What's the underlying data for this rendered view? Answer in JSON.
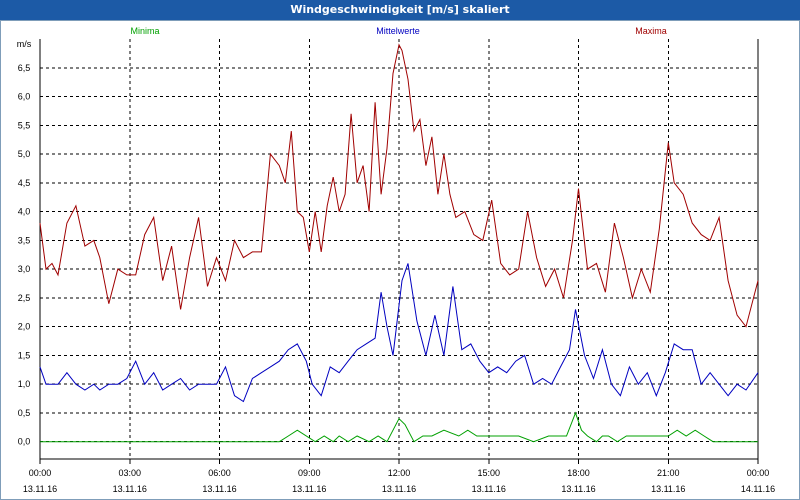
{
  "window": {
    "title": "Windgeschwindigkeit [m/s] skaliert"
  },
  "colors": {
    "titlebar": "#1c5aa6",
    "minima": "#00a000",
    "mittel": "#0000c0",
    "maxima": "#a00000",
    "grid": "#000000"
  },
  "chart_data": {
    "type": "line",
    "title": "Windgeschwindigkeit [m/s] skaliert",
    "ylabel": "m/s",
    "xlabel": "",
    "ylim": [
      -0.3,
      7.0
    ],
    "xlim": [
      0,
      24
    ],
    "grid": true,
    "legend_placement": "top",
    "yticks": [
      {
        "v": 0.0,
        "label": "0,0"
      },
      {
        "v": 0.5,
        "label": "0,5"
      },
      {
        "v": 1.0,
        "label": "1,0"
      },
      {
        "v": 1.5,
        "label": "1,5"
      },
      {
        "v": 2.0,
        "label": "2,0"
      },
      {
        "v": 2.5,
        "label": "2,5"
      },
      {
        "v": 3.0,
        "label": "3,0"
      },
      {
        "v": 3.5,
        "label": "3,5"
      },
      {
        "v": 4.0,
        "label": "4,0"
      },
      {
        "v": 4.5,
        "label": "4,5"
      },
      {
        "v": 5.0,
        "label": "5,0"
      },
      {
        "v": 5.5,
        "label": "5,5"
      },
      {
        "v": 6.0,
        "label": "6,0"
      },
      {
        "v": 6.5,
        "label": "6,5"
      }
    ],
    "xticks": [
      {
        "h": 0,
        "time": "00:00",
        "date": "13.11.16"
      },
      {
        "h": 3,
        "time": "03:00",
        "date": "13.11.16"
      },
      {
        "h": 6,
        "time": "06:00",
        "date": "13.11.16"
      },
      {
        "h": 9,
        "time": "09:00",
        "date": "13.11.16"
      },
      {
        "h": 12,
        "time": "12:00",
        "date": "13.11.16"
      },
      {
        "h": 15,
        "time": "15:00",
        "date": "13.11.16"
      },
      {
        "h": 18,
        "time": "18:00",
        "date": "13.11.16"
      },
      {
        "h": 21,
        "time": "21:00",
        "date": "13.11.16"
      },
      {
        "h": 24,
        "time": "00:00",
        "date": "14.11.16"
      }
    ],
    "series": [
      {
        "name": "Minima",
        "color": "#00a000",
        "x": [
          0,
          8,
          8.3,
          8.6,
          9.2,
          9.5,
          9.8,
          10.0,
          10.3,
          10.6,
          11.0,
          11.3,
          11.6,
          12.0,
          12.2,
          12.5,
          12.8,
          13.1,
          13.5,
          14.0,
          14.3,
          14.6,
          15.0,
          16.0,
          16.5,
          17.0,
          17.3,
          17.6,
          17.9,
          18.1,
          18.3,
          18.6,
          18.8,
          19.0,
          19.3,
          19.6,
          20.0,
          20.5,
          21.0,
          21.3,
          21.6,
          21.9,
          22.2,
          22.5,
          24
        ],
        "values": [
          0,
          0,
          0.1,
          0.2,
          0,
          0.1,
          0,
          0.1,
          0,
          0.1,
          0,
          0.1,
          0,
          0.4,
          0.3,
          0,
          0.1,
          0.1,
          0.2,
          0.1,
          0.2,
          0.1,
          0.1,
          0.1,
          0,
          0.1,
          0.1,
          0.1,
          0.5,
          0.2,
          0.1,
          0,
          0.1,
          0.1,
          0,
          0.1,
          0.1,
          0.1,
          0.1,
          0.2,
          0.1,
          0.2,
          0.1,
          0,
          0
        ]
      },
      {
        "name": "Mittelwerte",
        "color": "#0000c0",
        "x": [
          0,
          0.2,
          0.4,
          0.6,
          0.9,
          1.2,
          1.5,
          1.8,
          2.0,
          2.3,
          2.6,
          2.9,
          3.2,
          3.5,
          3.8,
          4.1,
          4.4,
          4.7,
          5.0,
          5.3,
          5.6,
          5.9,
          6.2,
          6.5,
          6.8,
          7.1,
          7.4,
          7.7,
          8.0,
          8.3,
          8.6,
          8.9,
          9.1,
          9.4,
          9.7,
          10.0,
          10.3,
          10.6,
          10.9,
          11.2,
          11.4,
          11.6,
          11.8,
          12.1,
          12.3,
          12.6,
          12.9,
          13.2,
          13.5,
          13.8,
          14.1,
          14.4,
          14.7,
          15.0,
          15.3,
          15.6,
          15.9,
          16.2,
          16.5,
          16.8,
          17.1,
          17.4,
          17.7,
          17.9,
          18.2,
          18.5,
          18.8,
          19.1,
          19.4,
          19.7,
          20.0,
          20.3,
          20.6,
          20.9,
          21.2,
          21.5,
          21.8,
          22.1,
          22.4,
          22.7,
          23.0,
          23.3,
          23.6,
          24.0
        ],
        "values": [
          1.3,
          1.0,
          1.0,
          1.0,
          1.2,
          1.0,
          0.9,
          1.0,
          0.9,
          1.0,
          1.0,
          1.1,
          1.4,
          1.0,
          1.2,
          0.9,
          1.0,
          1.1,
          0.9,
          1.0,
          1.0,
          1.0,
          1.3,
          0.8,
          0.7,
          1.1,
          1.2,
          1.3,
          1.4,
          1.6,
          1.7,
          1.4,
          1.0,
          0.8,
          1.3,
          1.2,
          1.4,
          1.6,
          1.7,
          1.8,
          2.6,
          2.0,
          1.5,
          2.8,
          3.1,
          2.1,
          1.5,
          2.2,
          1.5,
          2.7,
          1.6,
          1.7,
          1.4,
          1.2,
          1.3,
          1.2,
          1.4,
          1.5,
          1.0,
          1.1,
          1.0,
          1.3,
          1.6,
          2.3,
          1.5,
          1.1,
          1.6,
          1.0,
          0.8,
          1.3,
          1.0,
          1.2,
          0.8,
          1.2,
          1.7,
          1.6,
          1.6,
          1.0,
          1.2,
          1.0,
          0.8,
          1.0,
          0.9,
          1.2
        ]
      },
      {
        "name": "Maxima",
        "color": "#a00000",
        "x": [
          0,
          0.2,
          0.4,
          0.6,
          0.9,
          1.2,
          1.5,
          1.8,
          2.0,
          2.3,
          2.6,
          2.9,
          3.2,
          3.5,
          3.8,
          4.1,
          4.4,
          4.7,
          5.0,
          5.3,
          5.6,
          5.9,
          6.2,
          6.5,
          6.8,
          7.1,
          7.4,
          7.7,
          8.0,
          8.2,
          8.4,
          8.6,
          8.8,
          9.0,
          9.2,
          9.4,
          9.6,
          9.8,
          10.0,
          10.2,
          10.4,
          10.6,
          10.8,
          11.0,
          11.2,
          11.4,
          11.6,
          11.8,
          12.0,
          12.1,
          12.3,
          12.5,
          12.7,
          12.9,
          13.1,
          13.3,
          13.5,
          13.7,
          13.9,
          14.2,
          14.5,
          14.8,
          15.1,
          15.4,
          15.7,
          16.0,
          16.3,
          16.6,
          16.9,
          17.2,
          17.5,
          17.8,
          18.0,
          18.3,
          18.6,
          18.9,
          19.2,
          19.5,
          19.8,
          20.1,
          20.4,
          20.7,
          21.0,
          21.2,
          21.5,
          21.8,
          22.1,
          22.4,
          22.7,
          23.0,
          23.3,
          23.6,
          24.0
        ],
        "values": [
          3.8,
          3.0,
          3.1,
          2.9,
          3.8,
          4.1,
          3.4,
          3.5,
          3.2,
          2.4,
          3.0,
          2.9,
          2.9,
          3.6,
          3.9,
          2.8,
          3.4,
          2.3,
          3.2,
          3.9,
          2.7,
          3.2,
          2.8,
          3.5,
          3.2,
          3.3,
          3.3,
          5.0,
          4.8,
          4.5,
          5.4,
          4.0,
          3.9,
          3.3,
          4.0,
          3.3,
          4.1,
          4.6,
          4.0,
          4.3,
          5.7,
          4.5,
          4.8,
          4.0,
          5.9,
          4.3,
          5.1,
          6.4,
          6.9,
          6.8,
          6.3,
          5.4,
          5.6,
          4.8,
          5.3,
          4.3,
          5.0,
          4.3,
          3.9,
          4.0,
          3.6,
          3.5,
          4.2,
          3.1,
          2.9,
          3.0,
          4.0,
          3.2,
          2.7,
          3.0,
          2.5,
          3.5,
          4.4,
          3.0,
          3.1,
          2.6,
          3.8,
          3.2,
          2.5,
          3.0,
          2.6,
          3.7,
          5.2,
          4.5,
          4.3,
          3.8,
          3.6,
          3.5,
          3.9,
          2.8,
          2.2,
          2.0,
          2.8
        ]
      }
    ]
  }
}
